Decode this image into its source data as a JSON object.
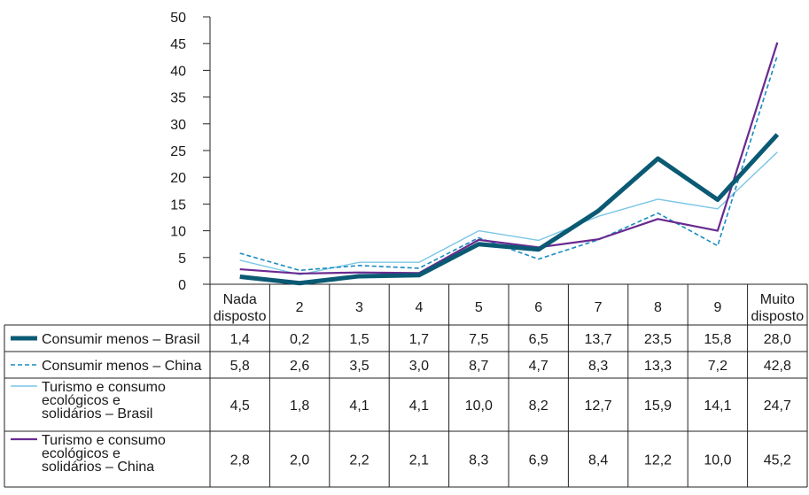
{
  "chart_data": {
    "type": "line",
    "categories": [
      "Nada disposto",
      "2",
      "3",
      "4",
      "5",
      "6",
      "7",
      "8",
      "9",
      "Muito disposto"
    ],
    "ylim": [
      0,
      50
    ],
    "yticks": [
      "0",
      "5",
      "10",
      "15",
      "20",
      "25",
      "30",
      "35",
      "40",
      "45",
      "50"
    ],
    "grid": false,
    "legend": "table-below",
    "series": [
      {
        "name": "Consumir menos – Brasil",
        "color": "#0a5a74",
        "style": "solid-thick",
        "values": [
          1.4,
          0.2,
          1.5,
          1.7,
          7.5,
          6.5,
          13.7,
          23.5,
          15.8,
          28.0
        ],
        "labels": [
          "1,4",
          "0,2",
          "1,5",
          "1,7",
          "7,5",
          "6,5",
          "13,7",
          "23,5",
          "15,8",
          "28,0"
        ]
      },
      {
        "name": "Consumir menos – China",
        "color": "#1a8bc0",
        "style": "dashed",
        "values": [
          5.8,
          2.6,
          3.5,
          3.0,
          8.7,
          4.7,
          8.3,
          13.3,
          7.2,
          42.8
        ],
        "labels": [
          "5,8",
          "2,6",
          "3,5",
          "3,0",
          "8,7",
          "4,7",
          "8,3",
          "13,3",
          "7,2",
          "42,8"
        ]
      },
      {
        "name": "Turismo e consumo ecológicos e solidários – Brasil",
        "color": "#7cc6e6",
        "style": "solid-thin",
        "values": [
          4.5,
          1.8,
          4.1,
          4.1,
          10.0,
          8.2,
          12.7,
          15.9,
          14.1,
          24.7
        ],
        "labels": [
          "4,5",
          "1,8",
          "4,1",
          "4,1",
          "10,0",
          "8,2",
          "12,7",
          "15,9",
          "14,1",
          "24,7"
        ]
      },
      {
        "name": "Turismo e consumo ecológicos e solidários – China",
        "color": "#6a2a90",
        "style": "solid",
        "values": [
          2.8,
          2.0,
          2.2,
          2.1,
          8.3,
          6.9,
          8.4,
          12.2,
          10.0,
          45.2
        ],
        "labels": [
          "2,8",
          "2,0",
          "2,2",
          "2,1",
          "8,3",
          "6,9",
          "8,4",
          "12,2",
          "10,0",
          "45,2"
        ]
      }
    ]
  }
}
